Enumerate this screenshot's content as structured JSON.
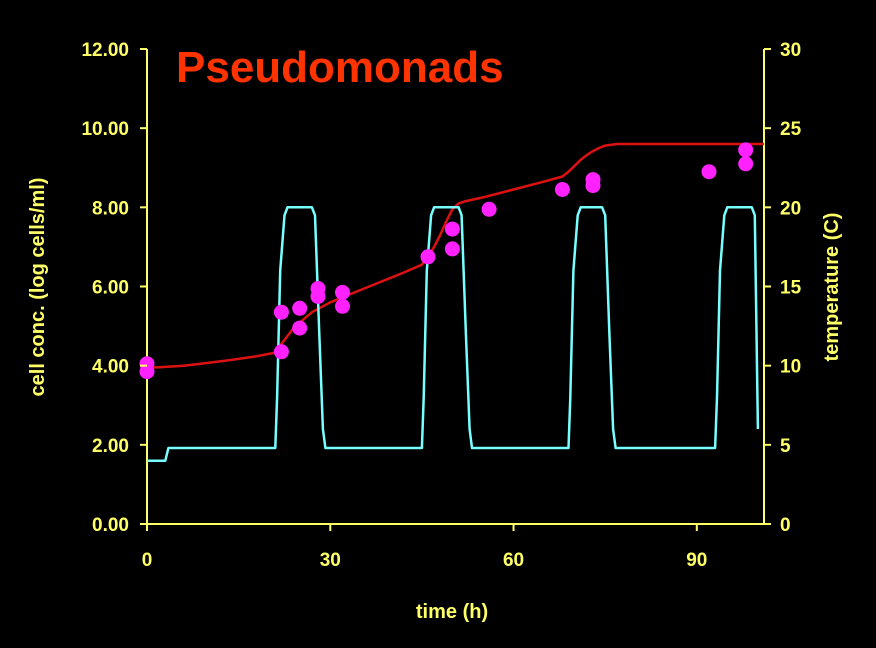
{
  "chart_data": {
    "type": "line",
    "title": "Pseudomonads",
    "xlabel": "time (h)",
    "ylabel_left": "cell conc. (log cells/ml)",
    "ylabel_right": "temperature (C)",
    "xlim": [
      0,
      101
    ],
    "ylim_left": [
      0,
      12
    ],
    "ylim_right": [
      0,
      30
    ],
    "x_ticks": [
      0,
      30,
      60,
      90
    ],
    "x_tick_labels": [
      "0",
      "30",
      "60",
      "90"
    ],
    "y_left_ticks": [
      0,
      2,
      4,
      6,
      8,
      10,
      12
    ],
    "y_left_tick_labels": [
      "0.00",
      "2.00",
      "4.00",
      "6.00",
      "8.00",
      "10.00",
      "12.00"
    ],
    "y_right_ticks": [
      0,
      5,
      10,
      15,
      20,
      25,
      30
    ],
    "y_right_tick_labels": [
      "0",
      "5",
      "10",
      "15",
      "20",
      "25",
      "30"
    ],
    "grid": false,
    "series": [
      {
        "axis": "left",
        "kind": "line",
        "color": "#dd1111",
        "x": [
          0,
          2,
          6,
          10,
          14,
          18,
          21,
          22,
          24,
          27,
          30,
          34,
          38,
          42,
          45,
          46,
          47,
          48,
          49,
          50,
          51,
          52,
          55,
          60,
          65,
          68,
          69,
          70,
          71,
          72,
          73,
          74,
          75,
          76,
          77,
          80,
          85,
          90,
          95,
          101
        ],
        "y": [
          3.95,
          3.96,
          4.0,
          4.07,
          4.15,
          4.24,
          4.33,
          4.55,
          4.95,
          5.35,
          5.6,
          5.85,
          6.1,
          6.35,
          6.55,
          6.75,
          7.0,
          7.3,
          7.65,
          7.95,
          8.1,
          8.15,
          8.25,
          8.45,
          8.65,
          8.78,
          8.9,
          9.05,
          9.2,
          9.32,
          9.42,
          9.5,
          9.56,
          9.58,
          9.6,
          9.6,
          9.6,
          9.6,
          9.6,
          9.6
        ]
      },
      {
        "axis": "right",
        "kind": "line",
        "color": "#77ffff",
        "x": [
          0,
          3,
          3.5,
          21,
          21.3,
          21.8,
          22.5,
          23,
          27,
          27.5,
          28.2,
          28.8,
          29.2,
          45,
          45.3,
          45.8,
          46.5,
          47,
          51,
          51.5,
          52.2,
          52.8,
          53.2,
          69,
          69.3,
          69.8,
          70.5,
          71,
          74.5,
          75,
          75.7,
          76.3,
          76.7,
          93,
          93.3,
          93.8,
          94.5,
          95,
          99,
          99.5,
          100
        ],
        "y": [
          4.0,
          4.0,
          4.8,
          4.8,
          8.0,
          16.0,
          19.5,
          20.0,
          20.0,
          19.5,
          12.0,
          6.0,
          4.8,
          4.8,
          8.0,
          16.0,
          19.5,
          20.0,
          20.0,
          19.5,
          12.0,
          6.0,
          4.8,
          4.8,
          8.0,
          16.0,
          19.5,
          20.0,
          20.0,
          19.5,
          12.0,
          6.0,
          4.8,
          4.8,
          8.0,
          16.0,
          19.5,
          20.0,
          20.0,
          19.5,
          6.0
        ]
      },
      {
        "axis": "left",
        "kind": "scatter",
        "color": "#ff22ff",
        "x": [
          0,
          0,
          22,
          22,
          25,
          25,
          28,
          28,
          32,
          32,
          46,
          50,
          50,
          56,
          68,
          73,
          73,
          92,
          98,
          98
        ],
        "y": [
          4.05,
          3.85,
          5.35,
          4.35,
          5.45,
          4.95,
          5.95,
          5.75,
          5.85,
          5.5,
          6.75,
          7.45,
          6.95,
          7.95,
          8.45,
          8.7,
          8.55,
          8.9,
          9.45,
          9.1
        ]
      }
    ]
  }
}
